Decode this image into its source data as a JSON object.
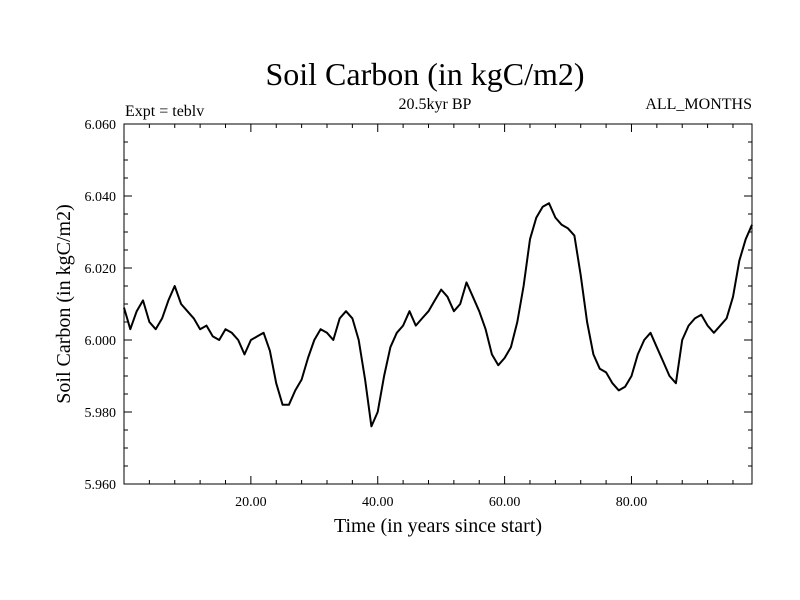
{
  "chart_data": {
    "type": "line",
    "title": "Soil Carbon (in kgC/m2)",
    "subtitle_left": "Expt = teblv",
    "subtitle_center": "20.5kyr BP",
    "subtitle_right": "ALL_MONTHS",
    "xlabel": "Time (in years since start)",
    "ylabel": "Soil Carbon (in kgC/m2)",
    "xlim": [
      0,
      99
    ],
    "ylim": [
      5.96,
      6.06
    ],
    "x_ticks": [
      20,
      40,
      60,
      80
    ],
    "x_tick_labels": [
      "20.00",
      "40.00",
      "60.00",
      "80.00"
    ],
    "y_ticks": [
      5.96,
      5.98,
      6.0,
      6.02,
      6.04,
      6.06
    ],
    "y_tick_labels": [
      "5.960",
      "5.980",
      "6.000",
      "6.020",
      "6.040",
      "6.060"
    ],
    "grid": false,
    "series": [
      {
        "name": "Soil Carbon",
        "x": [
          0,
          1,
          2,
          3,
          4,
          5,
          6,
          7,
          8,
          9,
          10,
          11,
          12,
          13,
          14,
          15,
          16,
          17,
          18,
          19,
          20,
          21,
          22,
          23,
          24,
          25,
          26,
          27,
          28,
          29,
          30,
          31,
          32,
          33,
          34,
          35,
          36,
          37,
          38,
          39,
          40,
          41,
          42,
          43,
          44,
          45,
          46,
          47,
          48,
          49,
          50,
          51,
          52,
          53,
          54,
          55,
          56,
          57,
          58,
          59,
          60,
          61,
          62,
          63,
          64,
          65,
          66,
          67,
          68,
          69,
          70,
          71,
          72,
          73,
          74,
          75,
          76,
          77,
          78,
          79,
          80,
          81,
          82,
          83,
          84,
          85,
          86,
          87,
          88,
          89,
          90,
          91,
          92,
          93,
          94,
          95,
          96,
          97,
          98,
          99
        ],
        "values": [
          6.009,
          6.003,
          6.008,
          6.011,
          6.005,
          6.003,
          6.006,
          6.011,
          6.015,
          6.01,
          6.008,
          6.006,
          6.003,
          6.004,
          6.001,
          6.0,
          6.003,
          6.002,
          6.0,
          5.996,
          6.0,
          6.001,
          6.002,
          5.997,
          5.988,
          5.982,
          5.982,
          5.986,
          5.989,
          5.995,
          6.0,
          6.003,
          6.002,
          6.0,
          6.006,
          6.008,
          6.006,
          6.0,
          5.989,
          5.976,
          5.98,
          5.99,
          5.998,
          6.002,
          6.004,
          6.008,
          6.004,
          6.006,
          6.008,
          6.011,
          6.014,
          6.012,
          6.008,
          6.01,
          6.016,
          6.012,
          6.008,
          6.003,
          5.996,
          5.993,
          5.995,
          5.998,
          6.005,
          6.015,
          6.028,
          6.034,
          6.037,
          6.038,
          6.034,
          6.032,
          6.031,
          6.029,
          6.018,
          6.005,
          5.996,
          5.992,
          5.991,
          5.988,
          5.986,
          5.987,
          5.99,
          5.996,
          6.0,
          6.002,
          5.998,
          5.994,
          5.99,
          5.988,
          6.0,
          6.004,
          6.006,
          6.007,
          6.004,
          6.002,
          6.004,
          6.006,
          6.012,
          6.022,
          6.028,
          6.032
        ]
      }
    ]
  }
}
